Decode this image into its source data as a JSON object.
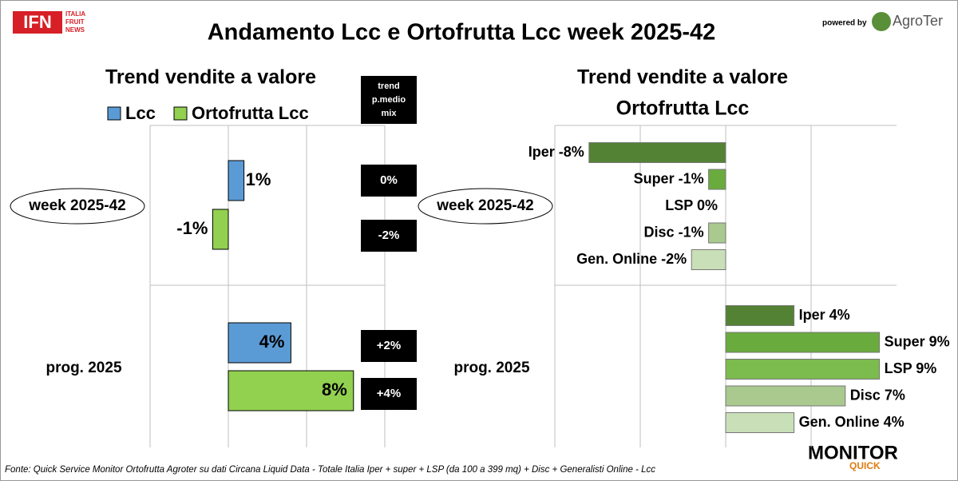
{
  "header": {
    "title": "Andamento Lcc e Ortofrutta Lcc week 2025-42",
    "logo": "IFN",
    "logo_sub": [
      "ITALIA",
      "FRUIT",
      "NEWS"
    ],
    "powered_by": "powered by",
    "brand": "AgroTer"
  },
  "chart_data": [
    {
      "type": "bar",
      "orientation": "horizontal",
      "title": "Trend vendite a valore",
      "categories": [
        "week 2025-42",
        "prog. 2025"
      ],
      "series": [
        {
          "name": "Lcc",
          "color": "#5b9bd5",
          "values": [
            1,
            4
          ],
          "value_labels": [
            "1%",
            "4%"
          ]
        },
        {
          "name": "Ortofrutta Lcc",
          "color": "#92d050",
          "values": [
            -1,
            8
          ],
          "value_labels": [
            "-1%",
            "8%"
          ]
        }
      ],
      "xlim": [
        -5,
        10
      ],
      "xticks": [
        -5,
        0,
        5,
        10
      ],
      "grid": true,
      "mix_header": [
        "trend",
        "p.medio",
        "mix"
      ],
      "mix_labels": [
        "0%",
        "-2%",
        "+2%",
        "+4%"
      ]
    },
    {
      "type": "bar",
      "orientation": "horizontal",
      "title": [
        "Trend vendite a valore",
        "Ortofrutta Lcc"
      ],
      "categories": [
        "week 2025-42",
        "prog. 2025"
      ],
      "series": [
        {
          "color": "#548235",
          "values": [
            -8,
            4
          ],
          "value_labels": [
            "Iper -8%",
            "Iper 4%"
          ]
        },
        {
          "color": "#6aab3e",
          "values": [
            -1,
            9
          ],
          "value_labels": [
            "Super -1%",
            "Super 9%"
          ]
        },
        {
          "color": "#7cbb4e",
          "values": [
            0,
            9
          ],
          "value_labels": [
            "LSP 0%",
            "LSP 9%"
          ]
        },
        {
          "color": "#a9c98e",
          "values": [
            -1,
            7
          ],
          "value_labels": [
            "Disc -1%",
            "Disc 7%"
          ]
        },
        {
          "color": "#c9dfb8",
          "values": [
            -2,
            4
          ],
          "value_labels": [
            "Gen. Online -2%",
            "Gen. Online 4%"
          ]
        }
      ],
      "xlim": [
        -10,
        10
      ],
      "xticks": [
        -10,
        -5,
        0,
        5
      ],
      "grid": true
    }
  ],
  "footer": {
    "source": "Fonte: Quick Service Monitor Ortofrutta Agroter su dati Circana Liquid Data - Totale Italia Iper + super + LSP (da 100 a 399 mq) + Disc + Generalisti Online - Lcc",
    "monitor": "MONITOR",
    "quick": "QUICK"
  }
}
